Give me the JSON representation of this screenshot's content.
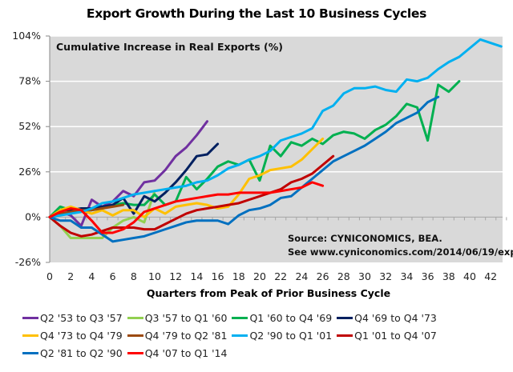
{
  "chart_data": {
    "type": "line",
    "title": "Export Growth During the Last 10 Business Cycles",
    "inner_label": "Cumulative  Increase in Real Exports (%)",
    "xlabel": "Quarters from Peak of Prior Business Cycle",
    "ylabel": "",
    "xlim": [
      0,
      43.5
    ],
    "ylim": [
      -26,
      104
    ],
    "yticks": [
      -26,
      0,
      26,
      52,
      78,
      104
    ],
    "ytick_labels": [
      "-26%",
      "0%",
      "26%",
      "52%",
      "78%",
      "104%"
    ],
    "xticks": [
      0,
      2,
      4,
      6,
      8,
      10,
      12,
      14,
      16,
      18,
      20,
      22,
      24,
      26,
      28,
      30,
      32,
      34,
      36,
      38,
      40,
      42
    ],
    "xtick_labels": [
      "0",
      "2",
      "4",
      "6",
      "8",
      "10",
      "12",
      "14",
      "16",
      "18",
      "20",
      "22",
      "24",
      "26",
      "28",
      "30",
      "32",
      "34",
      "36",
      "38",
      "40",
      "42"
    ],
    "grid": true,
    "legend_position": "bottom",
    "annotation": [
      "Source: CYNICONOMICS, BEA.",
      "See www.cyniconomics.com/2014/06/19/exports"
    ],
    "series": [
      {
        "name": "Q2 '53 to Q3 '57",
        "color": "#7030a0",
        "values": [
          0,
          3,
          1,
          -5,
          10,
          6,
          9,
          15,
          12,
          20,
          21,
          27,
          35,
          40,
          47,
          55
        ]
      },
      {
        "name": "Q3 '57 to Q1 '60",
        "color": "#92d050",
        "values": [
          0,
          -5,
          -12,
          -12,
          -12,
          -12,
          -6,
          -2,
          0,
          -3,
          15
        ]
      },
      {
        "name": "Q1 '60 to Q4 '69",
        "color": "#00b050",
        "values": [
          0,
          6,
          4,
          4,
          4,
          5,
          7,
          8,
          7,
          7,
          13,
          7,
          9,
          23,
          16,
          22,
          29,
          32,
          30,
          33,
          21,
          41,
          35,
          43,
          41,
          45,
          42,
          47,
          49,
          48,
          45,
          50,
          53,
          58,
          65,
          63,
          44,
          76,
          72,
          78
        ]
      },
      {
        "name": "Q4 '69 to Q4 '73",
        "color": "#002060",
        "values": [
          0,
          4,
          4,
          5,
          5,
          6,
          7,
          11,
          2,
          12,
          9,
          14,
          20,
          27,
          35,
          36,
          42
        ]
      },
      {
        "name": "Q4 '73 to Q4 '79",
        "color": "#ffc000",
        "values": [
          0,
          4,
          6,
          4,
          2,
          4,
          1,
          4,
          4,
          0,
          5,
          2,
          6,
          7,
          8,
          7,
          5,
          6,
          13,
          22,
          24,
          27,
          28,
          29,
          33,
          39,
          45
        ]
      },
      {
        "name": "Q4 '79 to Q2 '81",
        "color": "#9c4a0e",
        "values": [
          0,
          2,
          3,
          4,
          4,
          5,
          6,
          7
        ]
      },
      {
        "name": "Q2 '90 to Q1 '01",
        "color": "#00b0f0",
        "values": [
          0,
          1,
          2,
          3,
          5,
          8,
          9,
          11,
          13,
          14,
          15,
          16,
          17,
          18,
          20,
          21,
          24,
          28,
          30,
          33,
          35,
          38,
          44,
          46,
          48,
          51,
          61,
          64,
          71,
          74,
          74,
          75,
          73,
          72,
          79,
          78,
          80,
          85,
          89,
          92,
          97,
          102,
          100,
          98
        ]
      },
      {
        "name": "Q1 '01 to Q4 '07",
        "color": "#c00000",
        "values": [
          0,
          -5,
          -9,
          -11,
          -10,
          -8,
          -6,
          -6,
          -6,
          -7,
          -7,
          -4,
          -1,
          2,
          4,
          5,
          6,
          7,
          8,
          10,
          12,
          14,
          16,
          20,
          22,
          25,
          30,
          35
        ]
      },
      {
        "name": "Q2 '81 to Q2 '90",
        "color": "#0070c0",
        "values": [
          0,
          -2,
          -2,
          -6,
          -6,
          -10,
          -14,
          -13,
          -12,
          -11,
          -9,
          -7,
          -5,
          -3,
          -2,
          -2,
          -2,
          -4,
          1,
          4,
          5,
          7,
          11,
          12,
          17,
          22,
          27,
          32,
          35,
          38,
          41,
          45,
          49,
          54,
          57,
          60,
          66,
          69
        ]
      },
      {
        "name": "Q4 '07 to Q1 '14",
        "color": "#ff0000",
        "values": [
          0,
          3,
          5,
          4,
          -2,
          -9,
          -9,
          -7,
          -3,
          3,
          5,
          7,
          9,
          10,
          11,
          12,
          13,
          13,
          14,
          14,
          14,
          14,
          15,
          16,
          17,
          20,
          18
        ]
      }
    ]
  },
  "legend_rows": [
    [
      0,
      1,
      2,
      3
    ],
    [
      4,
      5,
      6,
      7
    ],
    [
      8,
      9
    ]
  ]
}
